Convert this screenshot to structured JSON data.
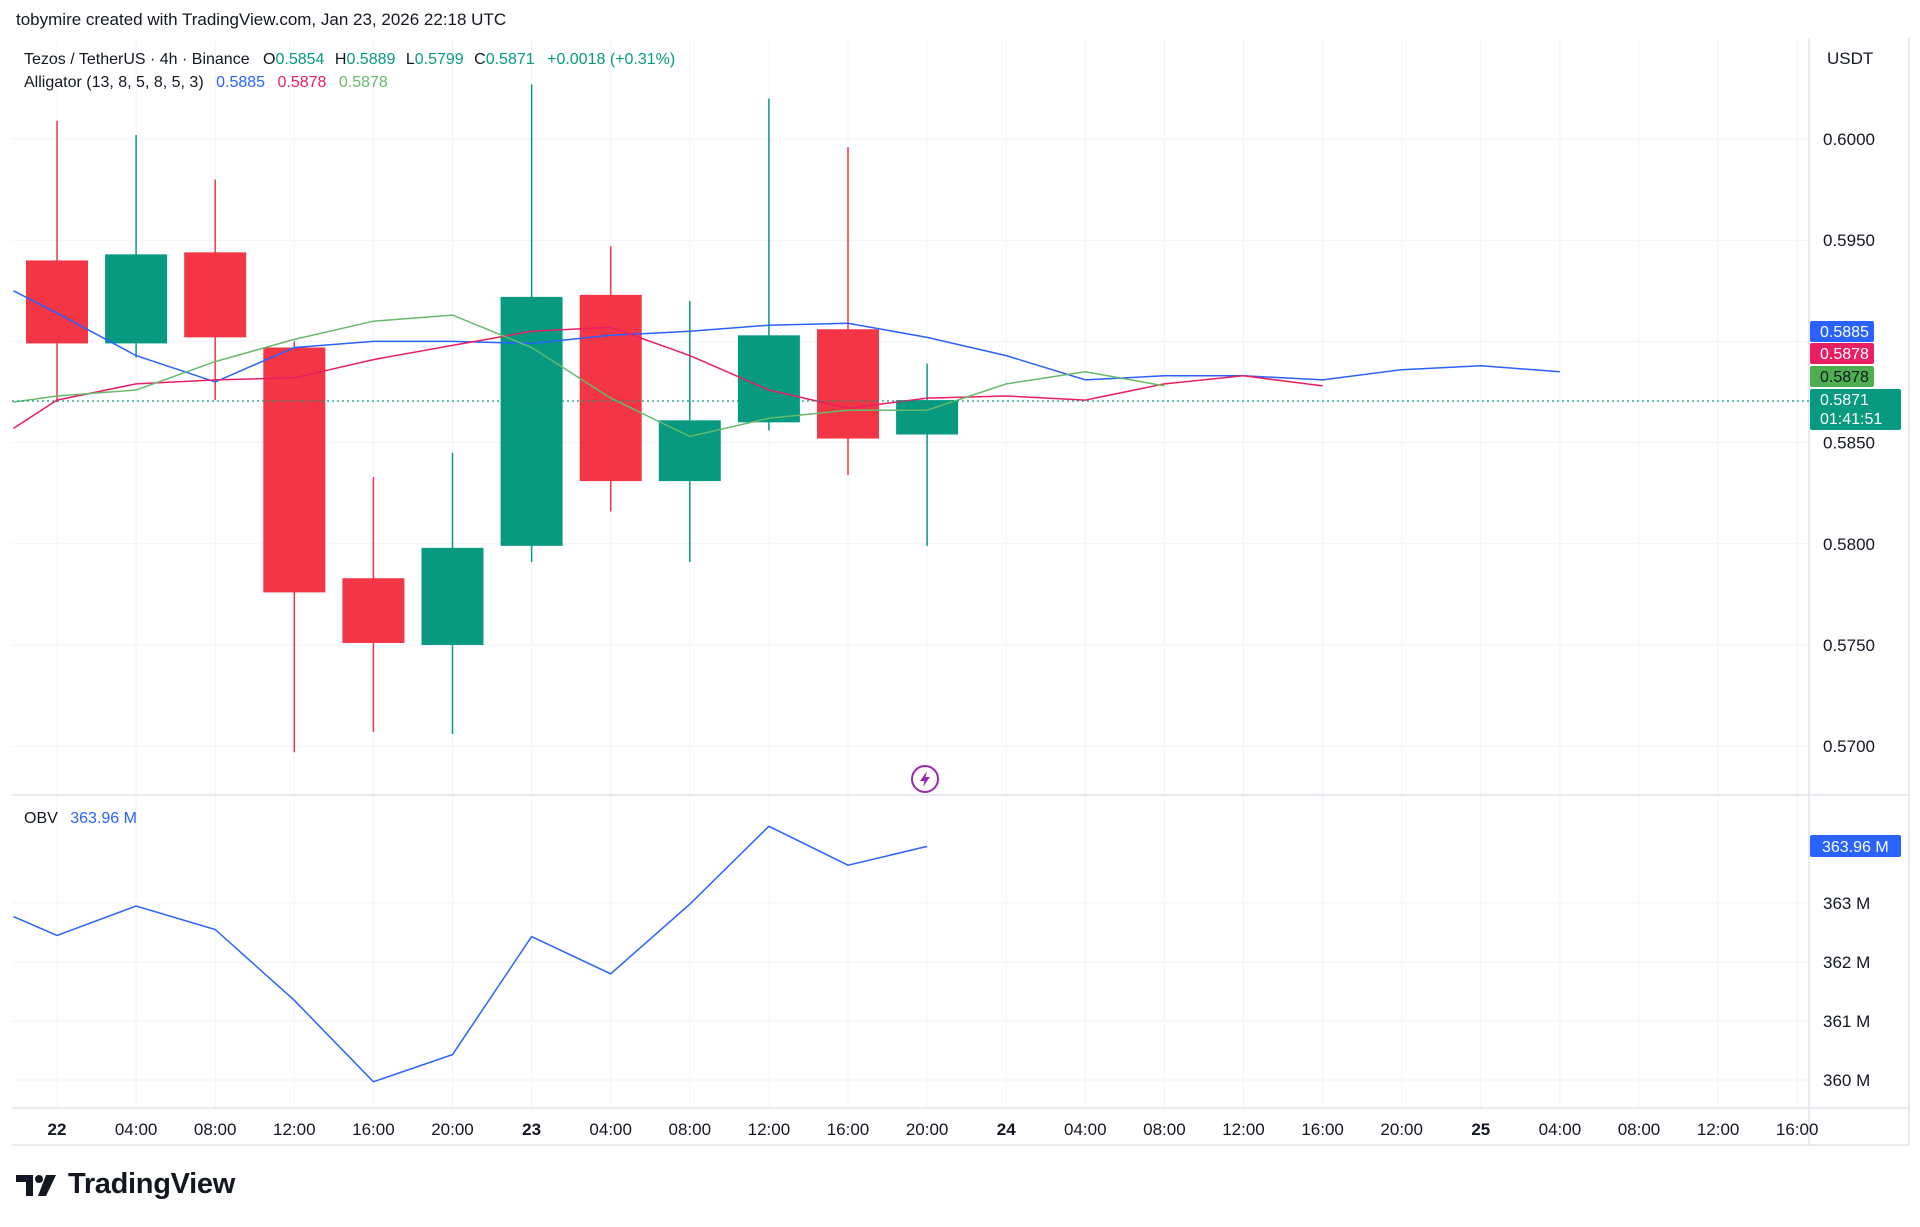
{
  "attribution": "tobymire created with TradingView.com, Jan 23, 2026 22:18 UTC",
  "brand": "TradingView",
  "colors": {
    "up": "#089981",
    "down": "#f23645",
    "jaw": "#2962ff",
    "teeth": "#e91e63",
    "lips": "#66bb6a",
    "grid": "#f0f3fa",
    "text": "#131722"
  },
  "legend": {
    "symbol": "Tezos / TetherUS · 4h · Binance",
    "o_label": "O",
    "o_value": "0.5854",
    "h_label": "H",
    "h_value": "0.5889",
    "l_label": "L",
    "l_value": "0.5799",
    "c_label": "C",
    "c_value": "0.5871",
    "change": "+0.0018 (+0.31%)",
    "indicator": "Alligator (13, 8, 5, 8, 5, 3)",
    "jaw_value": "0.5885",
    "teeth_value": "0.5878",
    "lips_value": "0.5878"
  },
  "obv_legend": {
    "name": "OBV",
    "value": "363.96 M"
  },
  "price_axis": {
    "currency": "USDT",
    "ticks": [
      "0.6000",
      "0.5950",
      "0.5850",
      "0.5800",
      "0.5750",
      "0.5700"
    ],
    "badges": {
      "jaw": "0.5885",
      "teeth": "0.5878",
      "lips": "0.5878",
      "last": "0.5871",
      "countdown": "01:41:51"
    }
  },
  "obv_axis": {
    "ticks": [
      "363 M",
      "362 M",
      "361 M",
      "360 M"
    ],
    "badge": "363.96 M"
  },
  "time_axis": [
    "22",
    "04:00",
    "08:00",
    "12:00",
    "16:00",
    "20:00",
    "23",
    "04:00",
    "08:00",
    "12:00",
    "16:00",
    "20:00",
    "24",
    "04:00",
    "08:00",
    "12:00",
    "16:00",
    "20:00",
    "25",
    "04:00",
    "08:00",
    "12:00",
    "16:00"
  ],
  "chart_data": {
    "type": "candlestick",
    "title": "Tezos / TetherUS · 4h · Binance",
    "timeframe": "4h",
    "ylim": [
      0.568,
      0.6045
    ],
    "candles": [
      {
        "t": "22 00:00",
        "o": 0.594,
        "h": 0.6009,
        "l": 0.587,
        "c": 0.5899
      },
      {
        "t": "22 04:00",
        "o": 0.5899,
        "h": 0.6002,
        "l": 0.5892,
        "c": 0.5943
      },
      {
        "t": "22 08:00",
        "o": 0.5944,
        "h": 0.598,
        "l": 0.5871,
        "c": 0.5902
      },
      {
        "t": "22 12:00",
        "o": 0.5897,
        "h": 0.59,
        "l": 0.5697,
        "c": 0.5776
      },
      {
        "t": "22 16:00",
        "o": 0.5783,
        "h": 0.5833,
        "l": 0.5707,
        "c": 0.5751
      },
      {
        "t": "22 20:00",
        "o": 0.575,
        "h": 0.5845,
        "l": 0.5706,
        "c": 0.5798
      },
      {
        "t": "23 00:00",
        "o": 0.5799,
        "h": 0.6027,
        "l": 0.5791,
        "c": 0.5922
      },
      {
        "t": "23 04:00",
        "o": 0.5923,
        "h": 0.5947,
        "l": 0.5816,
        "c": 0.5831
      },
      {
        "t": "23 08:00",
        "o": 0.5831,
        "h": 0.592,
        "l": 0.5791,
        "c": 0.5861
      },
      {
        "t": "23 12:00",
        "o": 0.586,
        "h": 0.602,
        "l": 0.5856,
        "c": 0.5903
      },
      {
        "t": "23 16:00",
        "o": 0.5906,
        "h": 0.5996,
        "l": 0.5834,
        "c": 0.5852
      },
      {
        "t": "23 20:00",
        "o": 0.5854,
        "h": 0.5889,
        "l": 0.5799,
        "c": 0.5871
      }
    ],
    "alligator": {
      "jaw": [
        [
          -0.55,
          0.5925
        ],
        [
          0,
          0.5914
        ],
        [
          1,
          0.5893
        ],
        [
          2,
          0.588
        ],
        [
          3,
          0.5897
        ],
        [
          4,
          0.59
        ],
        [
          5,
          0.59
        ],
        [
          6,
          0.5899
        ],
        [
          7,
          0.5903
        ],
        [
          8,
          0.5905
        ],
        [
          9,
          0.5908
        ],
        [
          10,
          0.5909
        ],
        [
          11,
          0.5902
        ],
        [
          12,
          0.5893
        ],
        [
          13,
          0.5881
        ],
        [
          14,
          0.5883
        ],
        [
          15,
          0.5883
        ],
        [
          16,
          0.5881
        ],
        [
          17,
          0.5886
        ],
        [
          18,
          0.5888
        ],
        [
          19,
          0.5885
        ]
      ],
      "teeth": [
        [
          -0.55,
          0.5857
        ],
        [
          0,
          0.5871
        ],
        [
          1,
          0.5879
        ],
        [
          2,
          0.5881
        ],
        [
          3,
          0.5882
        ],
        [
          4,
          0.5891
        ],
        [
          5,
          0.5898
        ],
        [
          6,
          0.5905
        ],
        [
          7,
          0.5907
        ],
        [
          8,
          0.5893
        ],
        [
          9,
          0.5876
        ],
        [
          10,
          0.5867
        ],
        [
          11,
          0.5872
        ],
        [
          12,
          0.5873
        ],
        [
          13,
          0.5871
        ],
        [
          14,
          0.5879
        ],
        [
          15,
          0.5883
        ],
        [
          16,
          0.5878
        ]
      ],
      "lips": [
        [
          -0.55,
          0.587
        ],
        [
          0,
          0.5873
        ],
        [
          1,
          0.5876
        ],
        [
          2,
          0.589
        ],
        [
          3,
          0.5901
        ],
        [
          4,
          0.591
        ],
        [
          5,
          0.5913
        ],
        [
          6,
          0.5897
        ],
        [
          7,
          0.5872
        ],
        [
          8,
          0.5853
        ],
        [
          9,
          0.5862
        ],
        [
          10,
          0.5866
        ],
        [
          11,
          0.5866
        ],
        [
          12,
          0.5879
        ],
        [
          13,
          0.5885
        ],
        [
          14,
          0.5878
        ]
      ]
    },
    "obv": {
      "name": "OBV",
      "unit": "M",
      "ylim": [
        359.6,
        364.5
      ],
      "values": [
        [
          -0.55,
          362.77
        ],
        [
          0,
          362.45
        ],
        [
          1,
          362.95
        ],
        [
          2,
          362.55
        ],
        [
          3,
          361.35
        ],
        [
          4,
          359.97
        ],
        [
          5,
          360.43
        ],
        [
          6,
          362.43
        ],
        [
          7,
          361.8
        ],
        [
          8,
          362.98
        ],
        [
          9,
          364.3
        ],
        [
          10,
          363.64
        ],
        [
          11,
          363.96
        ]
      ]
    }
  }
}
